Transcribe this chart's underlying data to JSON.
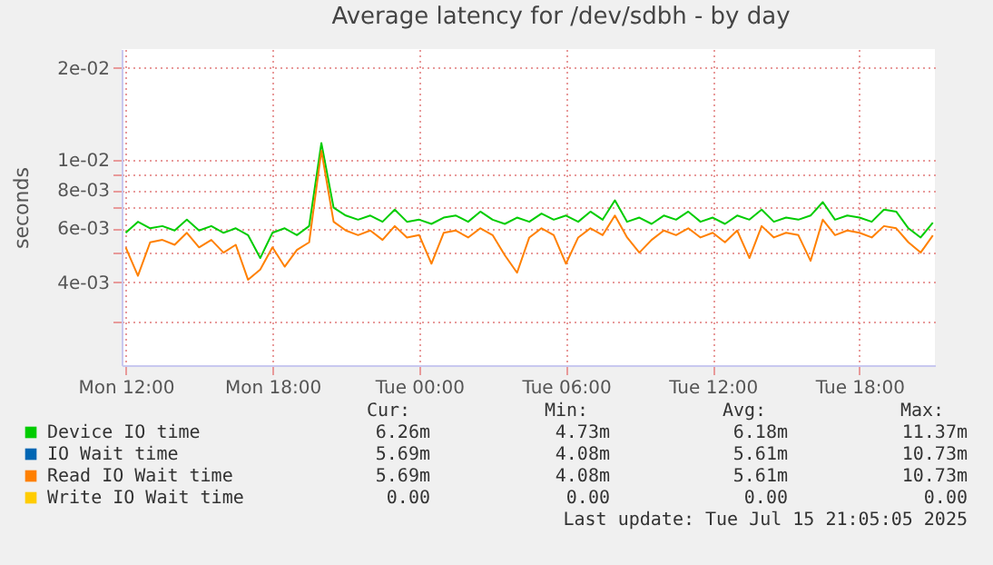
{
  "chart_data": {
    "type": "line",
    "title": "Average latency for /dev/sdbh - by day",
    "ylabel": "seconds",
    "x": [
      "2025-07-14T12:00",
      "2025-07-14T12:30",
      "2025-07-14T13:00",
      "2025-07-14T13:30",
      "2025-07-14T14:00",
      "2025-07-14T14:30",
      "2025-07-14T15:00",
      "2025-07-14T15:30",
      "2025-07-14T16:00",
      "2025-07-14T16:30",
      "2025-07-14T17:00",
      "2025-07-14T17:30",
      "2025-07-14T18:00",
      "2025-07-14T18:30",
      "2025-07-14T19:00",
      "2025-07-14T19:30",
      "2025-07-14T20:00",
      "2025-07-14T20:30",
      "2025-07-14T21:00",
      "2025-07-14T21:30",
      "2025-07-14T22:00",
      "2025-07-14T22:30",
      "2025-07-14T23:00",
      "2025-07-14T23:30",
      "2025-07-15T00:00",
      "2025-07-15T00:30",
      "2025-07-15T01:00",
      "2025-07-15T01:30",
      "2025-07-15T02:00",
      "2025-07-15T02:30",
      "2025-07-15T03:00",
      "2025-07-15T03:30",
      "2025-07-15T04:00",
      "2025-07-15T04:30",
      "2025-07-15T05:00",
      "2025-07-15T05:30",
      "2025-07-15T06:00",
      "2025-07-15T06:30",
      "2025-07-15T07:00",
      "2025-07-15T07:30",
      "2025-07-15T08:00",
      "2025-07-15T08:30",
      "2025-07-15T09:00",
      "2025-07-15T09:30",
      "2025-07-15T10:00",
      "2025-07-15T10:30",
      "2025-07-15T11:00",
      "2025-07-15T11:30",
      "2025-07-15T12:00",
      "2025-07-15T12:30",
      "2025-07-15T13:00",
      "2025-07-15T13:30",
      "2025-07-15T14:00",
      "2025-07-15T14:30",
      "2025-07-15T15:00",
      "2025-07-15T15:30",
      "2025-07-15T16:00",
      "2025-07-15T16:30",
      "2025-07-15T17:00",
      "2025-07-15T17:30",
      "2025-07-15T18:00",
      "2025-07-15T18:30",
      "2025-07-15T19:00",
      "2025-07-15T19:30",
      "2025-07-15T20:00",
      "2025-07-15T20:30",
      "2025-07-15T21:00"
    ],
    "series": [
      {
        "name": "Device IO time",
        "color": "#00cc00",
        "values": [
          0.0058,
          0.0063,
          0.006,
          0.0061,
          0.0059,
          0.0064,
          0.0059,
          0.0061,
          0.0058,
          0.006,
          0.0057,
          0.0048,
          0.0058,
          0.006,
          0.0057,
          0.0061,
          0.01137,
          0.007,
          0.0066,
          0.0064,
          0.0066,
          0.0063,
          0.0069,
          0.0063,
          0.0064,
          0.0062,
          0.0065,
          0.0066,
          0.0063,
          0.0068,
          0.0064,
          0.0062,
          0.0065,
          0.0063,
          0.0067,
          0.0064,
          0.0066,
          0.0063,
          0.0068,
          0.0064,
          0.0074,
          0.0063,
          0.0065,
          0.0062,
          0.0066,
          0.0064,
          0.0068,
          0.0063,
          0.0065,
          0.0062,
          0.0066,
          0.0064,
          0.0069,
          0.0063,
          0.0065,
          0.0064,
          0.0066,
          0.0073,
          0.0064,
          0.0066,
          0.0065,
          0.0063,
          0.0069,
          0.0068,
          0.006,
          0.0056,
          0.00626
        ]
      },
      {
        "name": "IO Wait time",
        "color": "#0066b3",
        "values": [
          null,
          null,
          null,
          null,
          null,
          null,
          null,
          null,
          null,
          null,
          null,
          null,
          null,
          null,
          null,
          null,
          null,
          null,
          null,
          null,
          null,
          null,
          null,
          null,
          null,
          null,
          null,
          null,
          null,
          null,
          null,
          null,
          null,
          null,
          null,
          null,
          null,
          null,
          null,
          null,
          null,
          null,
          null,
          null,
          null,
          null,
          null,
          null,
          null,
          null,
          null,
          null,
          null,
          null,
          null,
          null,
          null,
          null,
          null,
          null,
          null,
          null,
          null,
          null,
          null,
          null,
          null
        ]
      },
      {
        "name": "Read IO Wait time",
        "color": "#ff8000",
        "values": [
          0.0052,
          0.0042,
          0.0054,
          0.0055,
          0.0053,
          0.0058,
          0.0052,
          0.0055,
          0.005,
          0.0053,
          0.00408,
          0.0044,
          0.0052,
          0.0045,
          0.0051,
          0.0054,
          0.01073,
          0.0063,
          0.0059,
          0.0057,
          0.0059,
          0.0055,
          0.0061,
          0.0056,
          0.0057,
          0.0046,
          0.0058,
          0.0059,
          0.0056,
          0.006,
          0.0057,
          0.0049,
          0.0043,
          0.0056,
          0.006,
          0.0057,
          0.0046,
          0.0056,
          0.006,
          0.0057,
          0.0066,
          0.0056,
          0.005,
          0.0055,
          0.0059,
          0.0057,
          0.006,
          0.0056,
          0.0058,
          0.0054,
          0.0059,
          0.0048,
          0.0061,
          0.0056,
          0.0058,
          0.0057,
          0.0047,
          0.0064,
          0.0057,
          0.0059,
          0.0058,
          0.0056,
          0.0061,
          0.006,
          0.0054,
          0.005,
          0.00569
        ]
      },
      {
        "name": "Write IO Wait time",
        "color": "#ffcc00",
        "values": [
          null,
          null,
          null,
          null,
          null,
          null,
          null,
          null,
          null,
          null,
          null,
          null,
          null,
          null,
          null,
          null,
          null,
          null,
          null,
          null,
          null,
          null,
          null,
          null,
          null,
          null,
          null,
          null,
          null,
          null,
          null,
          null,
          null,
          null,
          null,
          null,
          null,
          null,
          null,
          null,
          null,
          null,
          null,
          null,
          null,
          null,
          null,
          null,
          null,
          null,
          null,
          null,
          null,
          null,
          null,
          null,
          null,
          null,
          null,
          null,
          null,
          null,
          null,
          null,
          null,
          null,
          null
        ]
      }
    ],
    "log": true,
    "ylim": [
      0.00215,
      0.023
    ],
    "yticks": [
      {
        "value": 0.003,
        "label": null
      },
      {
        "value": 0.004,
        "label": "4e-03"
      },
      {
        "value": 0.005,
        "label": null
      },
      {
        "value": 0.006,
        "label": "6e-03"
      },
      {
        "value": 0.007,
        "label": null
      },
      {
        "value": 0.008,
        "label": "8e-03"
      },
      {
        "value": 0.009,
        "label": null
      },
      {
        "value": 0.01,
        "label": "1e-02"
      },
      {
        "value": 0.02,
        "label": "2e-02"
      }
    ],
    "xlim": [
      "2025-07-14T11:50",
      "2025-07-15T21:05"
    ],
    "xticks": [
      {
        "value": "2025-07-14T12:00",
        "label": "Mon 12:00"
      },
      {
        "value": "2025-07-14T18:00",
        "label": "Mon 18:00"
      },
      {
        "value": "2025-07-15T00:00",
        "label": "Tue 00:00"
      },
      {
        "value": "2025-07-15T06:00",
        "label": "Tue 06:00"
      },
      {
        "value": "2025-07-15T12:00",
        "label": "Tue 12:00"
      },
      {
        "value": "2025-07-15T18:00",
        "label": "Tue 18:00"
      }
    ],
    "grid": true,
    "legend": "bottom",
    "line_style": "solid",
    "marker": "none",
    "annotations": [
      "Cur:",
      "Min:",
      "Avg:",
      "Max:",
      "6.26m",
      "4.73m",
      "6.18m",
      "11.37m",
      "5.69m",
      "4.08m",
      "5.61m",
      "10.73m",
      "5.69m",
      "4.08m",
      "5.61m",
      "10.73m",
      "0.00",
      "0.00",
      "0.00",
      "0.00",
      "Last update: Tue Jul 15 21:05:05 2025"
    ]
  }
}
